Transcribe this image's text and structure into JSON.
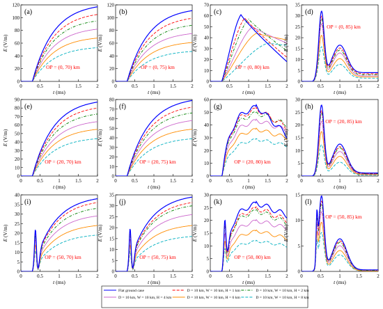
{
  "chart_data": {
    "type": "line",
    "xlabel": "t",
    "xlabel_unit": "(ms)",
    "ylabel": "E",
    "ylabel_unit": "(V/m)",
    "xlim": [
      0,
      2
    ],
    "xticks": [
      "0",
      "0.5",
      "1",
      "1.5",
      "2"
    ],
    "grid": false,
    "legend": {
      "placement": "bottom-center",
      "entries": [
        {
          "name": "Flat ground case",
          "color": "#0000ff",
          "dash": "solid"
        },
        {
          "name": "D = 10 km, W = 10 km, H = 1 km",
          "color": "#ff0000",
          "dash": "dash"
        },
        {
          "name": "D = 10 km, W = 10 km, H = 2 km",
          "color": "#008000",
          "dash": "dashdot"
        },
        {
          "name": "D = 10 km, W = 10 km, H = 4 km",
          "color": "#cc66cc",
          "dash": "solid"
        },
        {
          "name": "D = 10 km, W = 10 km, H = 6 km",
          "color": "#ff8c00",
          "dash": "solid"
        },
        {
          "name": "D = 10 km, W = 10 km, H = 8 km",
          "color": "#00b0c0",
          "dash": "dash"
        }
      ]
    },
    "panels": [
      {
        "label": "(a)",
        "op": "OP = (0, 70) km",
        "shape": "rise",
        "ylim": [
          0,
          120
        ],
        "yticks": [
          "0",
          "20",
          "40",
          "60",
          "80",
          "100",
          "120"
        ],
        "finals": [
          117,
          105,
          95,
          82,
          68,
          53
        ]
      },
      {
        "label": "(b)",
        "op": "OP = (0, 75) km",
        "shape": "rise",
        "ylim": [
          0,
          120
        ],
        "yticks": [
          "0",
          "20",
          "40",
          "60",
          "80",
          "100",
          "120"
        ],
        "finals": [
          111,
          99,
          88,
          75,
          61,
          47
        ]
      },
      {
        "label": "(c)",
        "op": "OP = (0, 80) km",
        "shape": "peak",
        "ylim": [
          0,
          70
        ],
        "yticks": [
          "0",
          "10",
          "20",
          "30",
          "40",
          "50",
          "60",
          "70"
        ],
        "peaks": [
          61,
          58,
          57,
          50,
          44,
          35
        ],
        "peak_times": [
          0.8,
          0.9,
          1.0,
          1.1,
          1.2,
          1.5
        ],
        "finals": [
          18,
          22,
          28,
          35,
          38,
          33
        ]
      },
      {
        "label": "(d)",
        "op": "OP = (0, 85) km",
        "shape": "spike",
        "ylim": [
          0,
          35
        ],
        "yticks": [
          "0",
          "5",
          "10",
          "15",
          "20",
          "25",
          "30",
          "35"
        ],
        "peaks": [
          30,
          28,
          27,
          25,
          20,
          15
        ],
        "finals": [
          4,
          3.5,
          3,
          2.5,
          2,
          1.5
        ]
      },
      {
        "label": "(e)",
        "op": "OP = (20, 70) km",
        "shape": "rise",
        "ylim": [
          0,
          90
        ],
        "yticks": [
          "0",
          "10",
          "20",
          "30",
          "40",
          "50",
          "60",
          "70",
          "80",
          "90"
        ],
        "finals": [
          87,
          80,
          73,
          64,
          55,
          44
        ]
      },
      {
        "label": "(f)",
        "op": "OP = (20, 75) km",
        "shape": "rise",
        "ylim": [
          0,
          80
        ],
        "yticks": [
          "0",
          "10",
          "20",
          "30",
          "40",
          "50",
          "60",
          "70",
          "80"
        ],
        "finals": [
          79,
          72,
          66,
          58,
          49,
          39
        ]
      },
      {
        "label": "(g)",
        "op": "OP = (20, 80) km",
        "shape": "plateau",
        "ylim": [
          0,
          60
        ],
        "yticks": [
          "0",
          "10",
          "20",
          "30",
          "40",
          "50",
          "60"
        ],
        "peaks": [
          55,
          53,
          50,
          44,
          37,
          29
        ],
        "finals": [
          32,
          38,
          40,
          36,
          30,
          24
        ]
      },
      {
        "label": "(h)",
        "op": "OP = (20, 85) km",
        "shape": "spike",
        "ylim": [
          0,
          30
        ],
        "yticks": [
          "0",
          "5",
          "10",
          "15",
          "20",
          "25",
          "30"
        ],
        "peaks": [
          27,
          25,
          24,
          21,
          17,
          12
        ],
        "finals": [
          1.2,
          1.0,
          0.9,
          0.8,
          0.6,
          0.4
        ]
      },
      {
        "label": "(i)",
        "op": "OP = (50, 70) km",
        "shape": "rise",
        "ylim": [
          0,
          40
        ],
        "yticks": [
          "0",
          "5",
          "10",
          "15",
          "20",
          "25",
          "30",
          "35",
          "40"
        ],
        "finals": [
          38,
          36,
          33,
          29,
          24,
          19
        ]
      },
      {
        "label": "(j)",
        "op": "OP = (50, 75) km",
        "shape": "rise",
        "ylim": [
          0,
          35
        ],
        "yticks": [
          "0",
          "5",
          "10",
          "15",
          "20",
          "25",
          "30",
          "35"
        ],
        "finals": [
          34,
          31.5,
          30,
          26,
          21,
          16
        ]
      },
      {
        "label": "(k)",
        "op": "OP = (50, 80) km",
        "shape": "plateau",
        "ylim": [
          0,
          30
        ],
        "yticks": [
          "0",
          "5",
          "10",
          "15",
          "20",
          "25",
          "30"
        ],
        "peaks": [
          27,
          25,
          24,
          20,
          16,
          12
        ],
        "finals": [
          22,
          20,
          19,
          17,
          13,
          10
        ]
      },
      {
        "label": "(l)",
        "op": "OP = (50, 85) km",
        "shape": "spike",
        "ylim": [
          0,
          15
        ],
        "yticks": [
          "0",
          "5",
          "10",
          "15"
        ],
        "peaks": [
          14.5,
          13.5,
          13,
          11.5,
          9.5,
          7.5
        ],
        "finals": [
          0.3,
          0.3,
          0.2,
          0.2,
          0.1,
          0.1
        ]
      }
    ]
  }
}
